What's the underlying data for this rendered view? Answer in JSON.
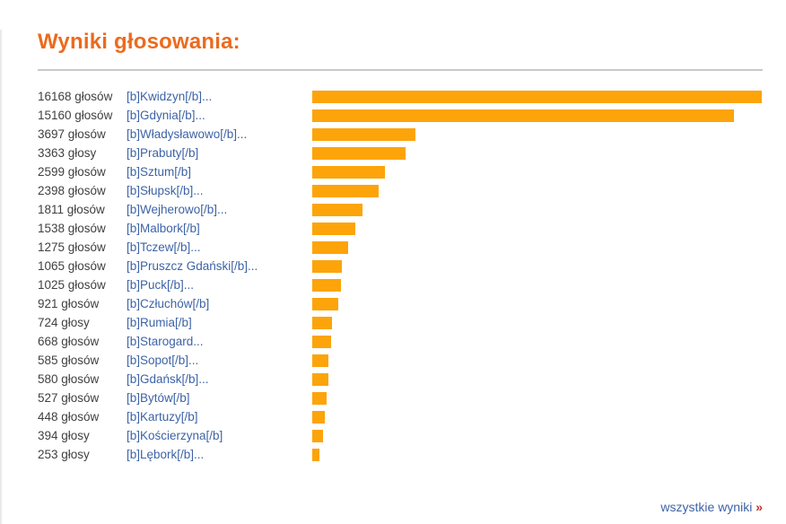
{
  "page": {
    "title": "Wyniki głosowania:"
  },
  "footer": {
    "link_label": "wszystkie wyniki",
    "arrow": "»"
  },
  "colors": {
    "title_orange": "#ec6a1e",
    "bar_orange": "#fca40a",
    "link_blue": "#3d63a6",
    "votes_text_gray": "#404040",
    "divider_gray": "#c9c9c9",
    "arrow_red": "#c2302a",
    "background": "#ffffff"
  },
  "chart_data": {
    "type": "bar",
    "orientation": "horizontal",
    "title": "Wyniki głosowania:",
    "max_value": 16168,
    "legend": "none",
    "grid": false,
    "rows": [
      {
        "value": 16168,
        "votes_label": "16168 głosów",
        "link_label": "[b]Kwidzyn[/b]..."
      },
      {
        "value": 15160,
        "votes_label": "15160 głosów",
        "link_label": "[b]Gdynia[/b]..."
      },
      {
        "value": 3697,
        "votes_label": "3697 głosów",
        "link_label": "[b]Władysławowo[/b]..."
      },
      {
        "value": 3363,
        "votes_label": "3363 głosy",
        "link_label": "[b]Prabuty[/b]"
      },
      {
        "value": 2599,
        "votes_label": "2599 głosów",
        "link_label": "[b]Sztum[/b]"
      },
      {
        "value": 2398,
        "votes_label": "2398 głosów",
        "link_label": "[b]Słupsk[/b]..."
      },
      {
        "value": 1811,
        "votes_label": "1811 głosów",
        "link_label": "[b]Wejherowo[/b]..."
      },
      {
        "value": 1538,
        "votes_label": "1538 głosów",
        "link_label": "[b]Malbork[/b]"
      },
      {
        "value": 1275,
        "votes_label": "1275 głosów",
        "link_label": "[b]Tczew[/b]..."
      },
      {
        "value": 1065,
        "votes_label": "1065 głosów",
        "link_label": "[b]Pruszcz Gdański[/b]..."
      },
      {
        "value": 1025,
        "votes_label": "1025 głosów",
        "link_label": "[b]Puck[/b]..."
      },
      {
        "value": 921,
        "votes_label": "921 głosów",
        "link_label": "[b]Człuchów[/b]"
      },
      {
        "value": 724,
        "votes_label": "724 głosy",
        "link_label": "[b]Rumia[/b]"
      },
      {
        "value": 668,
        "votes_label": "668 głosów",
        "link_label": "[b]Starogard..."
      },
      {
        "value": 585,
        "votes_label": "585 głosów",
        "link_label": "[b]Sopot[/b]..."
      },
      {
        "value": 580,
        "votes_label": "580 głosów",
        "link_label": "[b]Gdańsk[/b]..."
      },
      {
        "value": 527,
        "votes_label": "527 głosów",
        "link_label": "[b]Bytów[/b]"
      },
      {
        "value": 448,
        "votes_label": "448 głosów",
        "link_label": "[b]Kartuzy[/b]"
      },
      {
        "value": 394,
        "votes_label": "394 głosy",
        "link_label": "[b]Kościerzyna[/b]"
      },
      {
        "value": 253,
        "votes_label": "253 głosy",
        "link_label": "[b]Lębork[/b]..."
      }
    ]
  }
}
